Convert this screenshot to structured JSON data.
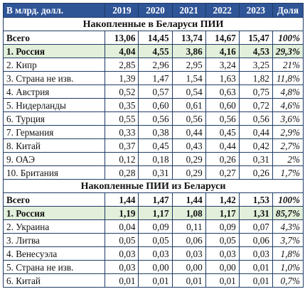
{
  "header": {
    "label": "В млрд. долл.",
    "years": [
      "2019",
      "2020",
      "2021",
      "2022",
      "2023"
    ],
    "share": "Доля"
  },
  "sections": [
    {
      "title": "Накопленные в Беларуси ПИИ",
      "rows": [
        {
          "name": "Всего",
          "values": [
            "13,06",
            "14,45",
            "13,74",
            "14,67",
            "15,47"
          ],
          "share": "100%",
          "bold": true,
          "highlight": false
        },
        {
          "name": "1. Россия",
          "values": [
            "4,04",
            "4,55",
            "3,86",
            "4,16",
            "4,53"
          ],
          "share": "29,3%",
          "bold": true,
          "highlight": true
        },
        {
          "name": "2. Кипр",
          "values": [
            "2,85",
            "2,96",
            "2,95",
            "3,24",
            "3,25"
          ],
          "share": "21%",
          "bold": false,
          "highlight": false
        },
        {
          "name": "3. Страна не изв.",
          "values": [
            "1,39",
            "1,47",
            "1,54",
            "1,63",
            "1,82"
          ],
          "share": "11,8%",
          "bold": false,
          "highlight": false
        },
        {
          "name": "4. Австрия",
          "values": [
            "0,52",
            "0,57",
            "0,54",
            "0,63",
            "0,75"
          ],
          "share": "4,8%",
          "bold": false,
          "highlight": false
        },
        {
          "name": "5. Нидерланды",
          "values": [
            "0,35",
            "0,60",
            "0,61",
            "0,60",
            "0,72"
          ],
          "share": "4,6%",
          "bold": false,
          "highlight": false
        },
        {
          "name": "6. Турция",
          "values": [
            "0,55",
            "0,56",
            "0,56",
            "0,56",
            "0,56"
          ],
          "share": "3,6%",
          "bold": false,
          "highlight": false
        },
        {
          "name": "7. Германия",
          "values": [
            "0,33",
            "0,38",
            "0,44",
            "0,45",
            "0,44"
          ],
          "share": "2,9%",
          "bold": false,
          "highlight": false
        },
        {
          "name": "8. Китай",
          "values": [
            "0,37",
            "0,45",
            "0,43",
            "0,44",
            "0,42"
          ],
          "share": "2,7%",
          "bold": false,
          "highlight": false
        },
        {
          "name": "9. ОАЭ",
          "values": [
            "0,12",
            "0,18",
            "0,29",
            "0,26",
            "0,31"
          ],
          "share": "2%",
          "bold": false,
          "highlight": false
        },
        {
          "name": "10. Британия",
          "values": [
            "0,28",
            "0,31",
            "0,29",
            "0,27",
            "0,26"
          ],
          "share": "1,7%",
          "bold": false,
          "highlight": false
        }
      ]
    },
    {
      "title": "Накопленные ПИИ из Беларуси",
      "rows": [
        {
          "name": "Всего",
          "values": [
            "1,44",
            "1,47",
            "1,44",
            "1,42",
            "1,53"
          ],
          "share": "100%",
          "bold": true,
          "highlight": false
        },
        {
          "name": "1. Россия",
          "values": [
            "1,19",
            "1,17",
            "1,08",
            "1,17",
            "1,31"
          ],
          "share": "85,7%",
          "bold": true,
          "highlight": true
        },
        {
          "name": "2. Украина",
          "values": [
            "0,04",
            "0,09",
            "0,11",
            "0,09",
            "0,07"
          ],
          "share": "4,3%",
          "bold": false,
          "highlight": false
        },
        {
          "name": "3. Литва",
          "values": [
            "0,05",
            "0,05",
            "0,06",
            "0,05",
            "0,06"
          ],
          "share": "3,7%",
          "bold": false,
          "highlight": false
        },
        {
          "name": "4. Венесуэла",
          "values": [
            "0,03",
            "0,03",
            "0,03",
            "0,03",
            "0,03"
          ],
          "share": "1,8%",
          "bold": false,
          "highlight": false
        },
        {
          "name": "5. Страна не изв.",
          "values": [
            "0,03",
            "0,00",
            "0,00",
            "0,00",
            "0,01"
          ],
          "share": "1,0%",
          "bold": false,
          "highlight": false
        },
        {
          "name": "6. Китай",
          "values": [
            "0,01",
            "0,01",
            "0,01",
            "0,01",
            "0,01"
          ],
          "share": "0,7%",
          "bold": false,
          "highlight": false
        }
      ]
    }
  ],
  "colors": {
    "header_bg": "#2f5597",
    "highlight_bg": "#e2efda",
    "border": "#1f3b64"
  }
}
